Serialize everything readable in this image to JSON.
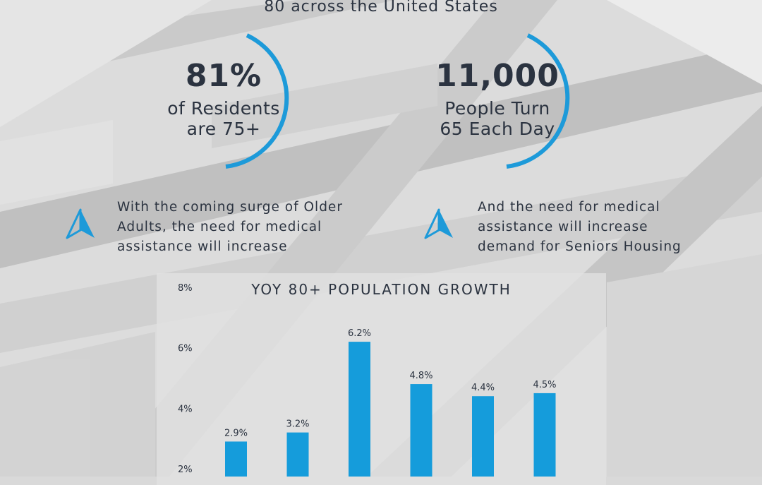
{
  "headline": "80 across the United States",
  "stats": [
    {
      "value": "81%",
      "line1": "of Residents",
      "line2": "are 75+"
    },
    {
      "value": "11,000",
      "line1": "People Turn",
      "line2": "65 Each Day"
    }
  ],
  "notes": [
    {
      "lines": [
        "With the coming surge of Older",
        "Adults, the need for medical",
        "assistance will increase"
      ]
    },
    {
      "lines": [
        "And the need for medical",
        "assistance will increase",
        "demand for Seniors Housing"
      ]
    }
  ],
  "colors": {
    "accent": "#1d9ad9",
    "text": "#2b3340",
    "bar": "#159cdb"
  },
  "icons": {
    "note_icon": "navigation-arrow-icon"
  },
  "chart_data": {
    "type": "bar",
    "title": "YOY 80+ POPULATION GROWTH",
    "categories": [
      "",
      "",
      "",
      "",
      "",
      ""
    ],
    "values": [
      2.9,
      3.2,
      6.2,
      4.8,
      4.4,
      4.5
    ],
    "value_labels": [
      "2.9%",
      "3.2%",
      "6.2%",
      "4.8%",
      "4.4%",
      "4.5%"
    ],
    "y_ticks": [
      "2%",
      "4%",
      "6%",
      "8%"
    ],
    "y_tick_values": [
      2,
      4,
      6,
      8
    ],
    "ylim": [
      1.7,
      8
    ],
    "grid": false
  }
}
